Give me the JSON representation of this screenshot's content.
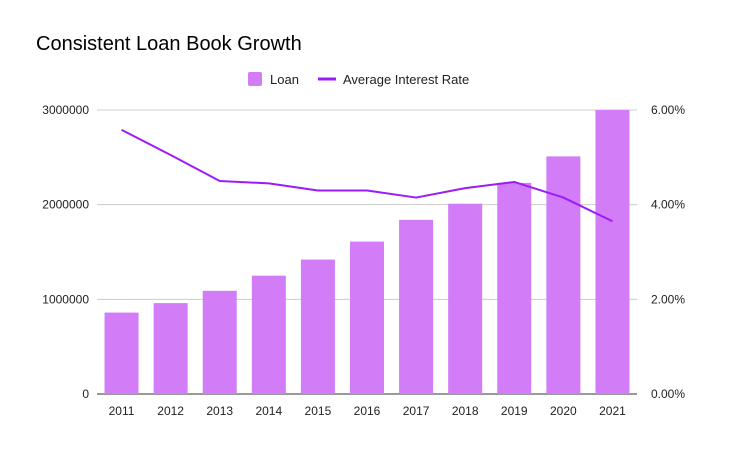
{
  "chart_data": {
    "type": "bar",
    "title": "Consistent Loan Book Growth",
    "categories": [
      "2011",
      "2012",
      "2013",
      "2014",
      "2015",
      "2016",
      "2017",
      "2018",
      "2019",
      "2020",
      "2021"
    ],
    "series": [
      {
        "name": "Loan",
        "type": "bar",
        "axis": "left",
        "color": "#d27cf7",
        "values": [
          860000,
          960000,
          1090000,
          1250000,
          1420000,
          1610000,
          1840000,
          2010000,
          2230000,
          2510000,
          3000000
        ]
      },
      {
        "name": "Average Interest Rate",
        "type": "line",
        "axis": "right",
        "color": "#9b1cf7",
        "values": [
          5.58,
          5.05,
          4.5,
          4.45,
          4.3,
          4.3,
          4.15,
          4.35,
          4.48,
          4.15,
          3.65
        ]
      }
    ],
    "y_left": {
      "ylim": [
        0,
        3000000
      ],
      "ticks": [
        0,
        1000000,
        2000000,
        3000000
      ],
      "tick_labels": [
        "0",
        "1000000",
        "2000000",
        "3000000"
      ]
    },
    "y_right": {
      "ylim": [
        0,
        6
      ],
      "ticks": [
        0,
        2,
        4,
        6
      ],
      "tick_labels": [
        "0.00%",
        "2.00%",
        "4.00%",
        "6.00%"
      ]
    },
    "xlabel": "",
    "ylabel": "",
    "grid": true,
    "legend": "top-center"
  }
}
